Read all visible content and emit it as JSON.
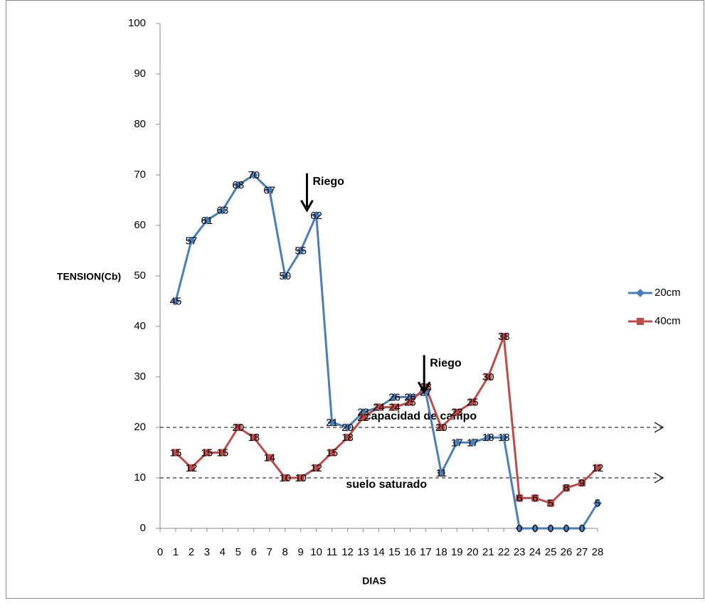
{
  "chart_data": {
    "type": "line",
    "x_label": "DIAS",
    "y_label": "TENSION(Cb)",
    "x": [
      1,
      2,
      3,
      4,
      5,
      6,
      7,
      8,
      9,
      10,
      11,
      12,
      13,
      14,
      15,
      16,
      17,
      18,
      19,
      20,
      21,
      22,
      23,
      24,
      25,
      26,
      27,
      28
    ],
    "xlim": [
      0,
      28
    ],
    "xticks": [
      0,
      1,
      2,
      3,
      4,
      5,
      6,
      7,
      8,
      9,
      10,
      11,
      12,
      13,
      14,
      15,
      16,
      17,
      18,
      19,
      20,
      21,
      22,
      23,
      24,
      25,
      26,
      27,
      28
    ],
    "ylim": [
      0,
      100
    ],
    "yticks": [
      0,
      10,
      20,
      30,
      40,
      50,
      60,
      70,
      80,
      90,
      100
    ],
    "legend": "right",
    "series": [
      {
        "name": "20cm",
        "color": "#4a7ebb",
        "marker": "diamond",
        "values": [
          45,
          57,
          61,
          63,
          68,
          70,
          67,
          50,
          55,
          62,
          21,
          20,
          23,
          24,
          26,
          26,
          27,
          11,
          17,
          17,
          18,
          18,
          0,
          0,
          0,
          0,
          0,
          5
        ]
      },
      {
        "name": "40cm",
        "color": "#be4b48",
        "marker": "square",
        "values": [
          15,
          12,
          15,
          15,
          20,
          18,
          14,
          10,
          10,
          12,
          15,
          18,
          22,
          24,
          24,
          25,
          28,
          20,
          23,
          25,
          30,
          38,
          6,
          6,
          5,
          8,
          9,
          12
        ]
      }
    ],
    "reference_lines": [
      {
        "value": 20,
        "label": "capacidad de campo"
      },
      {
        "value": 10,
        "label": "suelo saturado"
      }
    ],
    "annotations": [
      {
        "text": "Riego",
        "x": 9.4,
        "y": 63
      },
      {
        "text": "Riego",
        "x": 16.9,
        "y": 27
      }
    ]
  }
}
